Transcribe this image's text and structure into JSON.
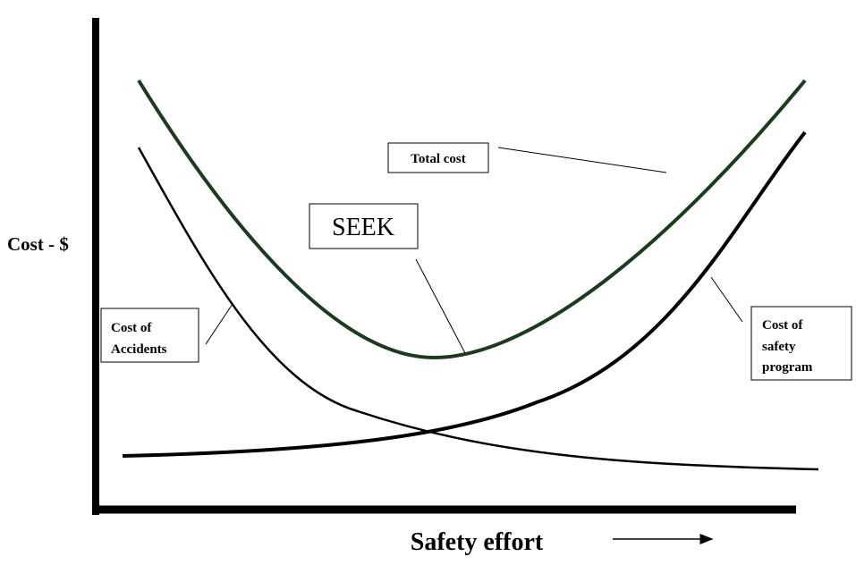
{
  "axes": {
    "y_label": "Cost - $",
    "x_label": "Safety effort"
  },
  "labels": {
    "total_cost": "Total cost",
    "seek": "SEEK",
    "accidents": [
      "Cost of",
      "Accidents"
    ],
    "safety_program": [
      "Cost of",
      "safety",
      "program"
    ]
  }
}
